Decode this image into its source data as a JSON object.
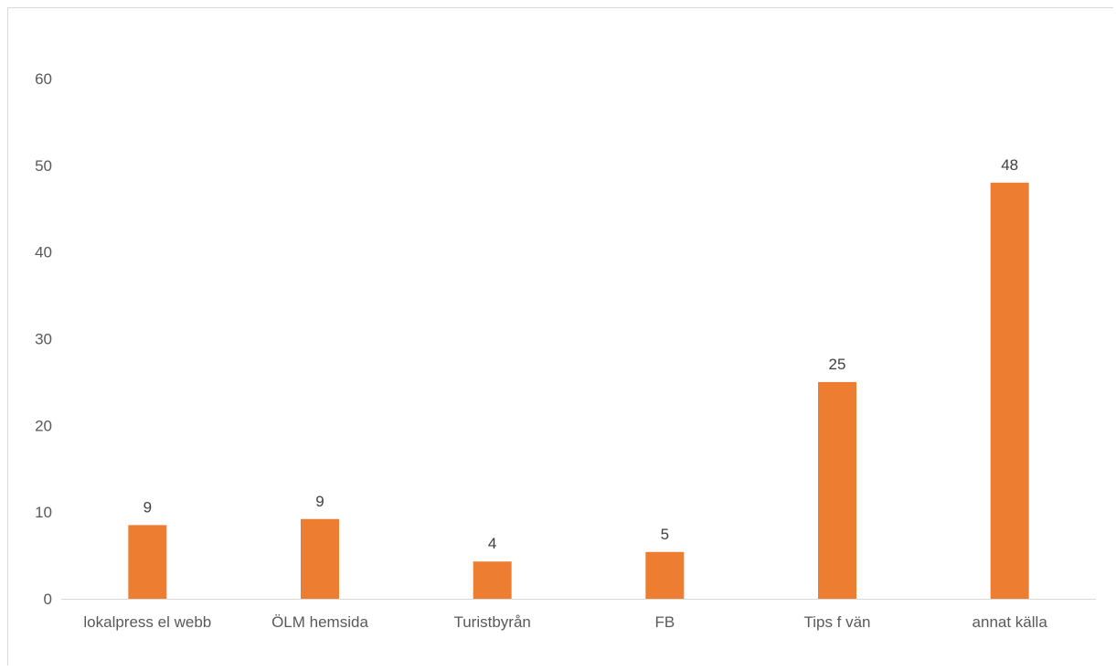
{
  "chart_data": {
    "type": "bar",
    "categories": [
      "lokalpress el webb",
      "ÖLM hemsida",
      "Turistbyrån",
      "FB",
      "Tips f vän",
      "annat källa"
    ],
    "values": [
      8.5,
      9.2,
      4.3,
      5.4,
      25,
      48
    ],
    "data_labels": [
      "9",
      "9",
      "4",
      "5",
      "25",
      "48"
    ],
    "title": "",
    "xlabel": "",
    "ylabel": "",
    "ylim": [
      0,
      60
    ],
    "yticks": [
      "0",
      "10",
      "20",
      "30",
      "40",
      "50",
      "60"
    ],
    "grid": false,
    "legend": "none",
    "bar_color": "#ED7D31",
    "axis_color": "#d9d9d9"
  }
}
